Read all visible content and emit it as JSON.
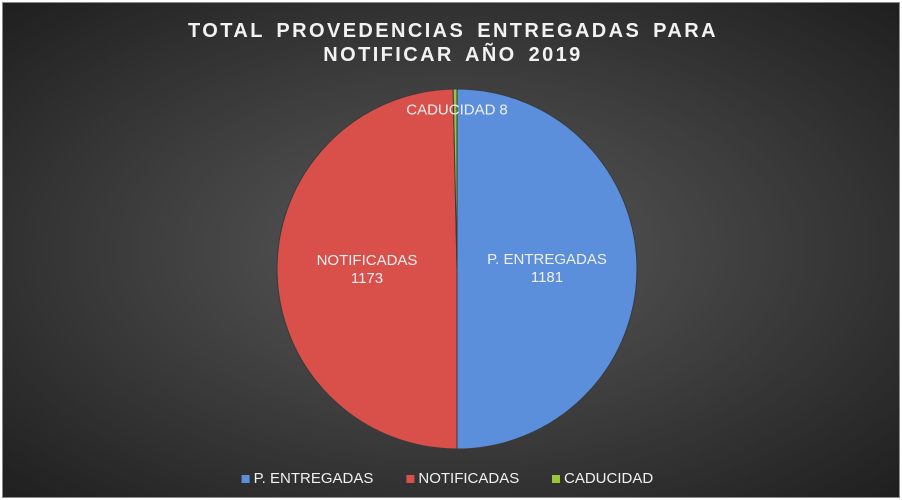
{
  "chart_data": {
    "type": "pie",
    "title": "TOTAL PROVEDENCIAS ENTREGADAS PARA NOTIFICAR AÑO 2019",
    "categories": [
      "P. ENTREGADAS",
      "NOTIFICADAS",
      "CADUCIDAD"
    ],
    "values": [
      1181,
      1173,
      8
    ],
    "colors": [
      "#5b8edb",
      "#d94f4a",
      "#9ac73a"
    ],
    "legend": "bottom"
  }
}
